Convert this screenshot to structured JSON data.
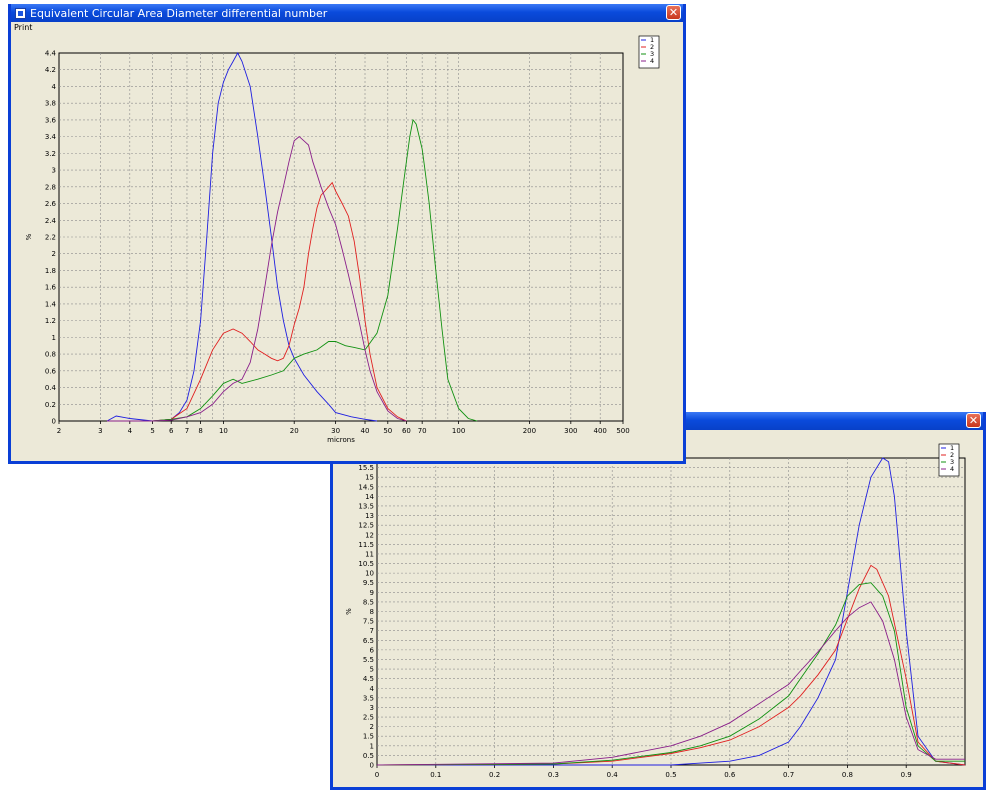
{
  "window1": {
    "title": "Equivalent Circular Area Diameter differential number",
    "menu": [
      "Print"
    ]
  },
  "window2": {
    "title": "",
    "menu": []
  },
  "colors": {
    "1": "#1f1fe0",
    "2": "#e02020",
    "3": "#119111",
    "4": "#8a1f8a"
  },
  "chart_data": [
    {
      "type": "line",
      "title": "Equivalent Circular Area Diameter differential number",
      "xlabel": "microns",
      "ylabel": "%",
      "xscale": "log",
      "xlim": [
        2,
        500
      ],
      "ylim": [
        0,
        4.4
      ],
      "xticks": [
        2,
        3,
        4,
        5,
        6,
        7,
        8,
        10,
        20,
        30,
        40,
        50,
        60,
        70,
        100,
        200,
        300,
        400,
        500
      ],
      "yticks": [
        0,
        0.2,
        0.4,
        0.6,
        0.8,
        1,
        1.2,
        1.4,
        1.6,
        1.8,
        2,
        2.2,
        2.4,
        2.6,
        2.8,
        3,
        3.2,
        3.4,
        3.6,
        3.8,
        4,
        4.2,
        4.4
      ],
      "grid": true,
      "legend": "top-right",
      "series": [
        {
          "name": "1",
          "x": [
            3.2,
            3.5,
            4,
            5,
            6,
            6.5,
            7,
            7.5,
            8,
            8.5,
            9,
            9.5,
            10,
            10.5,
            11,
            11.5,
            12,
            13,
            14,
            15,
            16,
            17,
            18,
            19,
            20,
            22,
            25,
            28,
            30,
            35,
            40,
            45
          ],
          "y": [
            0,
            0.06,
            0.03,
            0,
            0.02,
            0.1,
            0.25,
            0.6,
            1.2,
            2.2,
            3.2,
            3.8,
            4.05,
            4.2,
            4.3,
            4.4,
            4.3,
            4.0,
            3.4,
            2.8,
            2.2,
            1.6,
            1.2,
            0.9,
            0.75,
            0.55,
            0.35,
            0.2,
            0.1,
            0.05,
            0.02,
            0
          ]
        },
        {
          "name": "2",
          "x": [
            3.2,
            5,
            6,
            7,
            8,
            9,
            10,
            11,
            12,
            13,
            14,
            15,
            16,
            17,
            18,
            19,
            20,
            21,
            22,
            23,
            24,
            25,
            26,
            27,
            28,
            29,
            30,
            32,
            34,
            36,
            38,
            40,
            42,
            45,
            50,
            55,
            60
          ],
          "y": [
            0,
            0,
            0.02,
            0.15,
            0.5,
            0.85,
            1.05,
            1.1,
            1.05,
            0.95,
            0.85,
            0.8,
            0.75,
            0.72,
            0.75,
            0.9,
            1.15,
            1.35,
            1.6,
            2.0,
            2.3,
            2.55,
            2.7,
            2.75,
            2.8,
            2.85,
            2.75,
            2.6,
            2.45,
            2.15,
            1.7,
            1.2,
            0.8,
            0.4,
            0.15,
            0.05,
            0
          ]
        },
        {
          "name": "3",
          "x": [
            3.2,
            5,
            6,
            7,
            8,
            9,
            10,
            11,
            12,
            14,
            16,
            18,
            20,
            22,
            25,
            28,
            30,
            33,
            36,
            40,
            45,
            50,
            55,
            58,
            60,
            62,
            64,
            66,
            68,
            70,
            72,
            75,
            80,
            85,
            90,
            100,
            110,
            120
          ],
          "y": [
            0,
            0,
            0.02,
            0.05,
            0.15,
            0.3,
            0.45,
            0.5,
            0.45,
            0.5,
            0.55,
            0.6,
            0.75,
            0.8,
            0.85,
            0.95,
            0.95,
            0.9,
            0.88,
            0.85,
            1.05,
            1.5,
            2.3,
            2.8,
            3.1,
            3.4,
            3.6,
            3.55,
            3.4,
            3.25,
            3.0,
            2.6,
            1.8,
            1.1,
            0.5,
            0.15,
            0.03,
            0
          ]
        },
        {
          "name": "4",
          "x": [
            3.2,
            5,
            6,
            7,
            8,
            9,
            10,
            11,
            12,
            13,
            14,
            15,
            16,
            17,
            18,
            19,
            20,
            21,
            22,
            23,
            24,
            25,
            26,
            28,
            30,
            32,
            34,
            36,
            38,
            40,
            42,
            45,
            50,
            55,
            60
          ],
          "y": [
            0,
            0,
            0.01,
            0.05,
            0.1,
            0.2,
            0.35,
            0.45,
            0.5,
            0.7,
            1.1,
            1.6,
            2.1,
            2.5,
            2.8,
            3.1,
            3.35,
            3.4,
            3.35,
            3.3,
            3.1,
            2.95,
            2.8,
            2.55,
            2.35,
            2.05,
            1.75,
            1.45,
            1.15,
            0.85,
            0.6,
            0.35,
            0.12,
            0.03,
            0
          ]
        }
      ]
    },
    {
      "type": "line",
      "title": "",
      "xlabel": "",
      "ylabel": "%",
      "xlim": [
        0,
        1
      ],
      "ylim": [
        0,
        16
      ],
      "xticks": [
        0,
        0.1,
        0.2,
        0.3,
        0.4,
        0.5,
        0.6,
        0.7,
        0.8,
        0.9
      ],
      "yticks": [
        0,
        0.5,
        1,
        1.5,
        2,
        2.5,
        3,
        3.5,
        4,
        4.5,
        5,
        5.5,
        6,
        6.5,
        7,
        7.5,
        8,
        8.5,
        9,
        9.5,
        10,
        10.5,
        11,
        11.5,
        12,
        12.5,
        13,
        13.5,
        14,
        14.5,
        15,
        15.5
      ],
      "grid": true,
      "legend": "top-right",
      "series": [
        {
          "name": "1",
          "x": [
            0,
            0.5,
            0.55,
            0.6,
            0.65,
            0.7,
            0.72,
            0.75,
            0.78,
            0.8,
            0.82,
            0.84,
            0.86,
            0.87,
            0.88,
            0.9,
            0.92,
            0.95,
            1.0
          ],
          "y": [
            0,
            0,
            0.1,
            0.2,
            0.5,
            1.2,
            2.0,
            3.5,
            5.5,
            9.0,
            12.5,
            15.0,
            16.0,
            15.8,
            14.0,
            7.0,
            1.5,
            0.2,
            0
          ]
        },
        {
          "name": "2",
          "x": [
            0,
            0.3,
            0.4,
            0.5,
            0.55,
            0.6,
            0.65,
            0.7,
            0.72,
            0.75,
            0.78,
            0.8,
            0.82,
            0.84,
            0.85,
            0.87,
            0.9,
            0.92,
            0.95,
            1.0
          ],
          "y": [
            0,
            0.05,
            0.2,
            0.6,
            0.9,
            1.3,
            2.0,
            3.0,
            3.6,
            4.7,
            6.0,
            7.6,
            9.2,
            10.4,
            10.2,
            8.8,
            4.5,
            1.2,
            0.2,
            0
          ]
        },
        {
          "name": "3",
          "x": [
            0,
            0.3,
            0.4,
            0.5,
            0.55,
            0.6,
            0.65,
            0.7,
            0.72,
            0.75,
            0.78,
            0.8,
            0.82,
            0.84,
            0.86,
            0.88,
            0.9,
            0.92,
            0.95,
            1.0
          ],
          "y": [
            0,
            0.05,
            0.25,
            0.65,
            1.0,
            1.5,
            2.4,
            3.6,
            4.5,
            5.8,
            7.3,
            8.8,
            9.4,
            9.5,
            8.8,
            7.0,
            3.0,
            1.0,
            0.2,
            0.2
          ]
        },
        {
          "name": "4",
          "x": [
            0,
            0.3,
            0.4,
            0.5,
            0.55,
            0.6,
            0.65,
            0.7,
            0.72,
            0.75,
            0.78,
            0.8,
            0.82,
            0.84,
            0.86,
            0.88,
            0.9,
            0.92,
            0.95,
            1.0
          ],
          "y": [
            0,
            0.1,
            0.4,
            1.0,
            1.5,
            2.2,
            3.2,
            4.2,
            4.9,
            5.9,
            7.0,
            7.7,
            8.2,
            8.5,
            7.5,
            5.5,
            2.5,
            0.8,
            0.3,
            0.3
          ]
        }
      ]
    }
  ]
}
